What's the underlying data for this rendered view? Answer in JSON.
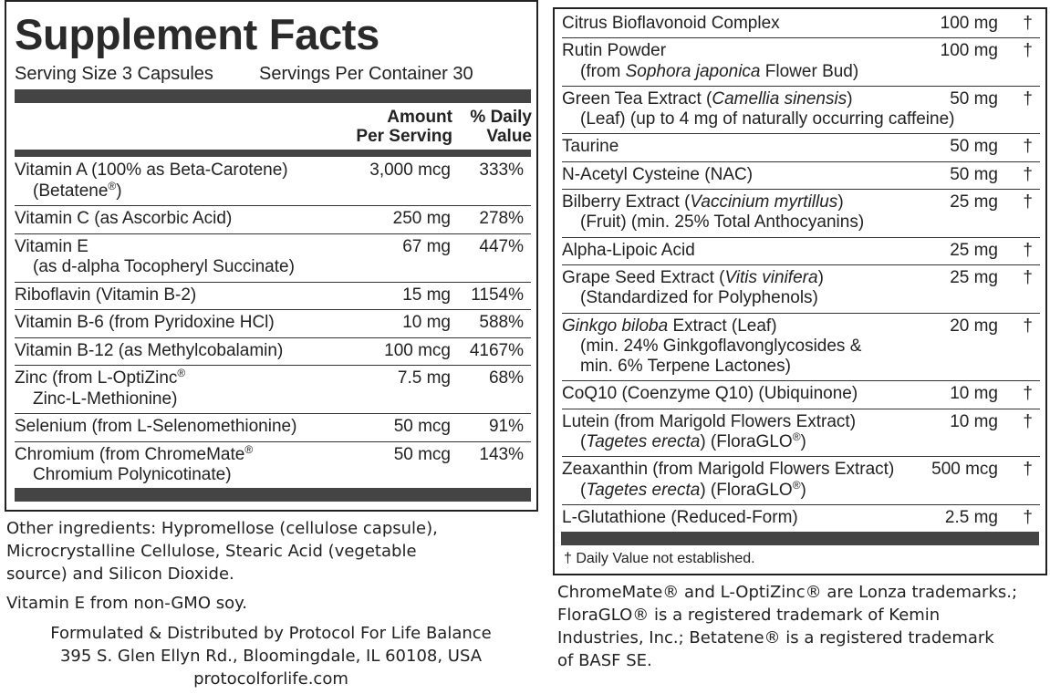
{
  "left_panel": {
    "title": "Supplement Facts",
    "serving_size": "Serving Size 3 Capsules",
    "servings_per_container": "Servings Per Container 30",
    "header": {
      "amount": [
        "Amount",
        "Per Serving"
      ],
      "daily_value": [
        "% Daily",
        "Value"
      ]
    },
    "rows": [
      {
        "name": [
          [
            "Vitamin A (100% as Beta-Carotene)"
          ],
          [
            "(Betatene",
            {
              "text": "®",
              "style": "sup"
            },
            ")"
          ]
        ],
        "amount": "3,000 mcg",
        "dv": "333%"
      },
      {
        "name": [
          [
            "Vitamin C (as Ascorbic Acid)"
          ]
        ],
        "amount": "250 mg",
        "dv": "278%"
      },
      {
        "name": [
          [
            "Vitamin E"
          ],
          [
            "(as d-alpha Tocopheryl Succinate)"
          ]
        ],
        "amount": "67 mg",
        "dv": "447%"
      },
      {
        "name": [
          [
            "Riboflavin (Vitamin B-2)"
          ]
        ],
        "amount": "15 mg",
        "dv": "1154%"
      },
      {
        "name": [
          [
            "Vitamin B-6 (from Pyridoxine HCl)"
          ]
        ],
        "amount": "10 mg",
        "dv": "588%"
      },
      {
        "name": [
          [
            "Vitamin B-12 (as Methylcobalamin)"
          ]
        ],
        "amount": "100 mcg",
        "dv": "4167%"
      },
      {
        "name": [
          [
            "Zinc (from L-OptiZinc",
            {
              "text": "®",
              "style": "sup"
            }
          ],
          [
            "Zinc-L-Methionine)"
          ]
        ],
        "amount": "7.5 mg",
        "dv": "68%"
      },
      {
        "name": [
          [
            "Selenium (from L-Selenomethionine)"
          ]
        ],
        "amount": "50 mcg",
        "dv": "91%"
      },
      {
        "name": [
          [
            "Chromium (from ChromeMate",
            {
              "text": "®",
              "style": "sup"
            }
          ],
          [
            "Chromium Polynicotinate)"
          ]
        ],
        "amount": "50 mcg",
        "dv": "143%"
      }
    ]
  },
  "right_panel": {
    "rows": [
      {
        "name": [
          [
            "Citrus Bioflavonoid Complex"
          ]
        ],
        "amount": "100 mg",
        "mark": "†"
      },
      {
        "name": [
          [
            "Rutin Powder"
          ],
          [
            "(from ",
            {
              "text": "Sophora japonica",
              "style": "italic"
            },
            " Flower Bud)"
          ]
        ],
        "amount": "100 mg",
        "mark": "†"
      },
      {
        "name": [
          [
            "Green Tea Extract (",
            {
              "text": "Camellia sinensis",
              "style": "italic"
            },
            ")"
          ],
          [
            "(Leaf) (up to 4 mg of naturally occurring caffeine)"
          ]
        ],
        "amount": "50 mg",
        "mark": "†"
      },
      {
        "name": [
          [
            "Taurine"
          ]
        ],
        "amount": "50 mg",
        "mark": "†"
      },
      {
        "name": [
          [
            "N-Acetyl Cysteine (NAC)"
          ]
        ],
        "amount": "50 mg",
        "mark": "†"
      },
      {
        "name": [
          [
            "Bilberry Extract (",
            {
              "text": "Vaccinium myrtillus",
              "style": "italic"
            },
            ")"
          ],
          [
            "(Fruit) (min. 25% Total Anthocyanins)"
          ]
        ],
        "amount": "25 mg",
        "mark": "†"
      },
      {
        "name": [
          [
            "Alpha-Lipoic Acid"
          ]
        ],
        "amount": "25 mg",
        "mark": "†"
      },
      {
        "name": [
          [
            "Grape Seed Extract (",
            {
              "text": "Vitis vinifera",
              "style": "italic"
            },
            ")"
          ],
          [
            "(Standardized for Polyphenols)"
          ]
        ],
        "amount": "25 mg",
        "mark": "†"
      },
      {
        "name": [
          [
            {
              "text": "Ginkgo biloba",
              "style": "italic"
            },
            " Extract (Leaf)"
          ],
          [
            "(min. 24% Ginkgoflavonglycosides &"
          ],
          [
            "min. 6% Terpene Lactones)"
          ]
        ],
        "amount": "20 mg",
        "mark": "†"
      },
      {
        "name": [
          [
            "CoQ10 (Coenzyme Q10) (Ubiquinone)"
          ]
        ],
        "amount": "10 mg",
        "mark": "†"
      },
      {
        "name": [
          [
            "Lutein (from Marigold Flowers Extract)"
          ],
          [
            "(",
            {
              "text": "Tagetes erecta",
              "style": "italic"
            },
            ") (FloraGLO",
            {
              "text": "®",
              "style": "sup"
            },
            ")"
          ]
        ],
        "amount": "10 mg",
        "mark": "†"
      },
      {
        "name": [
          [
            "Zeaxanthin (from Marigold Flowers Extract)"
          ],
          [
            "(",
            {
              "text": "Tagetes erecta",
              "style": "italic"
            },
            ") (FloraGLO",
            {
              "text": "®",
              "style": "sup"
            },
            ")"
          ]
        ],
        "amount": "500 mcg",
        "mark": "†"
      },
      {
        "name": [
          [
            "L-Glutathione (Reduced-Form)"
          ]
        ],
        "amount": "2.5 mg",
        "mark": "†"
      }
    ],
    "footnote": "† Daily Value not established."
  },
  "other_ingredients": [
    "Other ingredients: Hypromellose (cellulose capsule),",
    "Microcrystalline Cellulose, Stearic Acid (vegetable",
    "source) and Silicon Dioxide."
  ],
  "vitamin_e_note": "Vitamin E from non-GMO soy.",
  "distributor": [
    "Formulated & Distributed by Protocol For Life Balance",
    "395 S. Glen Ellyn Rd., Bloomingdale, IL 60108, USA",
    "protocolforlife.com"
  ],
  "trademarks": [
    "ChromeMate® and L-OptiZinc® are Lonza trademarks.;",
    "FloraGLO® is a registered trademark of Kemin",
    "Industries, Inc.;  Betatene® is a registered trademark",
    "of BASF SE."
  ]
}
